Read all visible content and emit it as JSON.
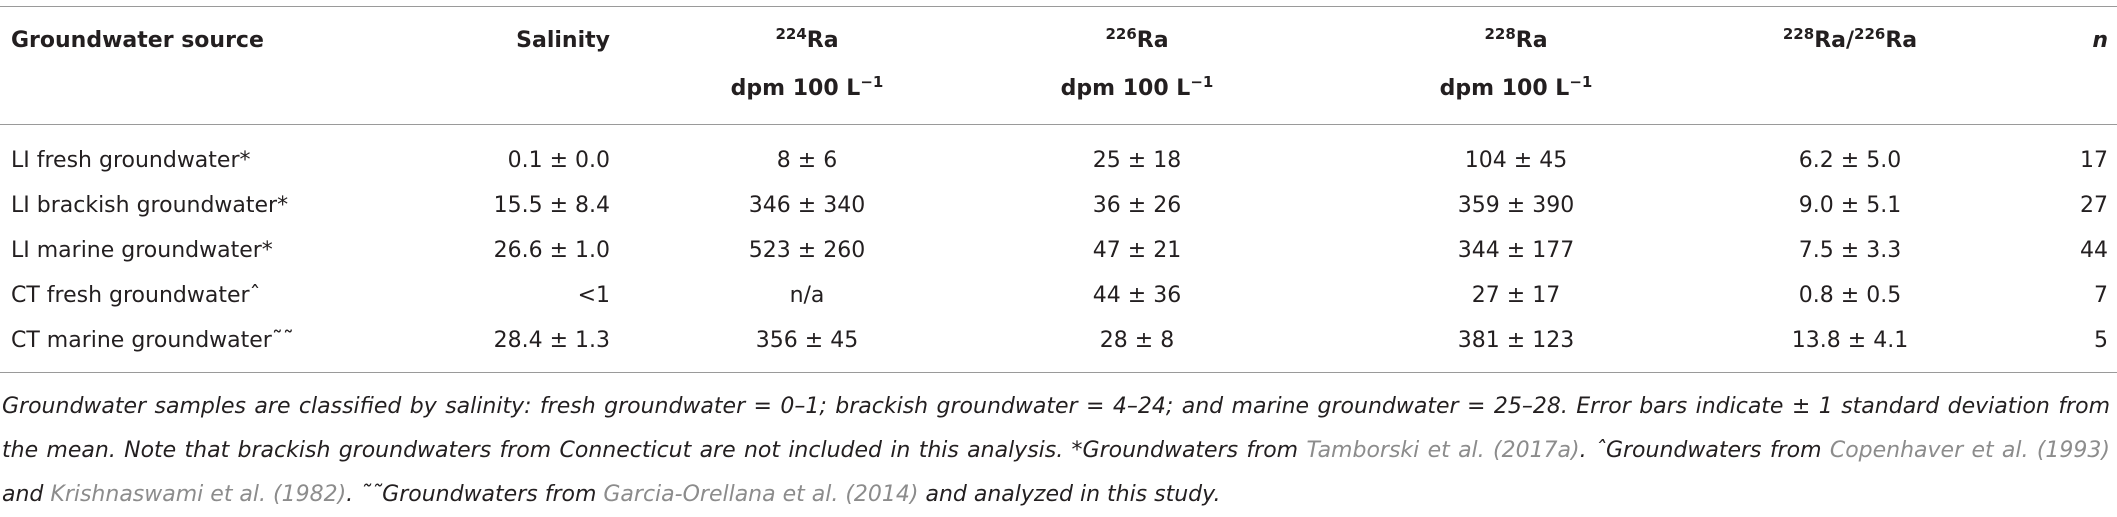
{
  "table": {
    "columns": [
      {
        "text": "Groundwater source"
      },
      {
        "text": "Salinity"
      },
      {
        "sup": "224",
        "text": "Ra",
        "unit": "dpm 100 L",
        "unit_sup": "−1"
      },
      {
        "sup": "226",
        "text": "Ra",
        "unit": "dpm 100 L",
        "unit_sup": "−1"
      },
      {
        "sup": "228",
        "text": "Ra",
        "unit": "dpm 100 L",
        "unit_sup": "−1"
      },
      {
        "sup1": "228",
        "text1": "Ra/",
        "sup2": "226",
        "text2": "Ra"
      },
      {
        "text": "n"
      }
    ],
    "rows": [
      [
        "LI fresh groundwater*",
        "0.1 ± 0.0",
        "8 ± 6",
        "25 ± 18",
        "104 ± 45",
        "6.2 ± 5.0",
        "17"
      ],
      [
        "LI brackish groundwater*",
        "15.5 ± 8.4",
        "346 ± 340",
        "36 ± 26",
        "359 ± 390",
        "9.0 ± 5.1",
        "27"
      ],
      [
        "LI marine groundwater*",
        "26.6 ± 1.0",
        "523 ± 260",
        "47 ± 21",
        "344 ± 177",
        "7.5 ± 3.3",
        "44"
      ],
      [
        "CT fresh groundwaterˆ",
        "<1",
        "n/a",
        "44 ± 36",
        "27 ± 17",
        "0.8 ± 0.5",
        "7"
      ],
      [
        "CT marine groundwater˜˜",
        "28.4 ± 1.3",
        "356 ± 45",
        "28 ± 8",
        "381 ± 123",
        "13.8 ± 4.1",
        "5"
      ]
    ]
  },
  "footnote": [
    {
      "text": "Groundwater samples are classified by salinity: fresh groundwater = 0–1; brackish groundwater = 4–24; and marine groundwater = 25–28. Error bars indicate ± 1 standard deviation from the mean. Note that brackish groundwaters from Connecticut are not included in this analysis. *Groundwaters from "
    },
    {
      "link": "Tamborski et al. (2017a)"
    },
    {
      "text": ". ˆGroundwaters from "
    },
    {
      "link": "Copenhaver et al. (1993)"
    },
    {
      "text": " and "
    },
    {
      "link": "Krishnaswami et al. (1982)"
    },
    {
      "text": ". ˜˜Groundwaters from "
    },
    {
      "link": "Garcia-Orellana et al. (2014)"
    },
    {
      "text": " and analyzed in this study."
    }
  ]
}
